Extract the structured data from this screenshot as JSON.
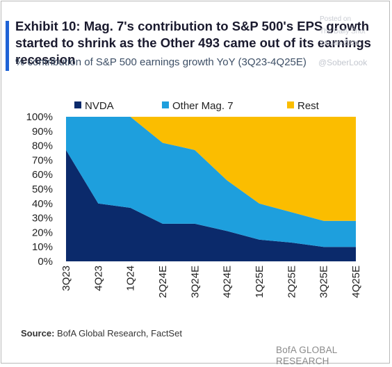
{
  "header": {
    "title": "Exhibit 10: Mag. 7's contribution to S&P 500's EPS growth started to shrink as the Other 493 came out of its earnings recession",
    "subtitle": "% contribution of S&P 500 earnings growth YoY (3Q23-4Q25E)"
  },
  "watermark": {
    "line1": "Posted on",
    "line2": "The Daily Shot",
    "line3": "24-Jan-2024",
    "line4": "@SoberLook"
  },
  "footer": {
    "source_label": "Source:",
    "source_text": " BofA Global Research, FactSet",
    "brand": "BofA GLOBAL RESEARCH"
  },
  "colors": {
    "NVDA": "#0b2a6b",
    "Other Mag. 7": "#1e9fdd",
    "Rest": "#fbbd00",
    "accent": "#1f63d6"
  },
  "chart_data": {
    "type": "area",
    "stacked": true,
    "categories": [
      "3Q23",
      "4Q23",
      "1Q24",
      "2Q24E",
      "3Q24E",
      "4Q24E",
      "1Q25E",
      "2Q25E",
      "3Q25E",
      "4Q25E"
    ],
    "series": [
      {
        "name": "NVDA",
        "values": [
          77,
          40,
          37,
          26,
          26,
          21,
          15,
          13,
          10,
          10
        ]
      },
      {
        "name": "Other Mag. 7",
        "values": [
          23,
          60,
          63,
          56,
          51,
          35,
          25,
          21,
          18,
          18
        ]
      },
      {
        "name": "Rest",
        "values": [
          0,
          0,
          0,
          18,
          23,
          44,
          60,
          66,
          72,
          72
        ]
      }
    ],
    "yticks": [
      "0%",
      "10%",
      "20%",
      "30%",
      "40%",
      "50%",
      "60%",
      "70%",
      "80%",
      "90%",
      "100%"
    ],
    "ylim": [
      0,
      100
    ],
    "legend_position": "top",
    "grid": false
  }
}
